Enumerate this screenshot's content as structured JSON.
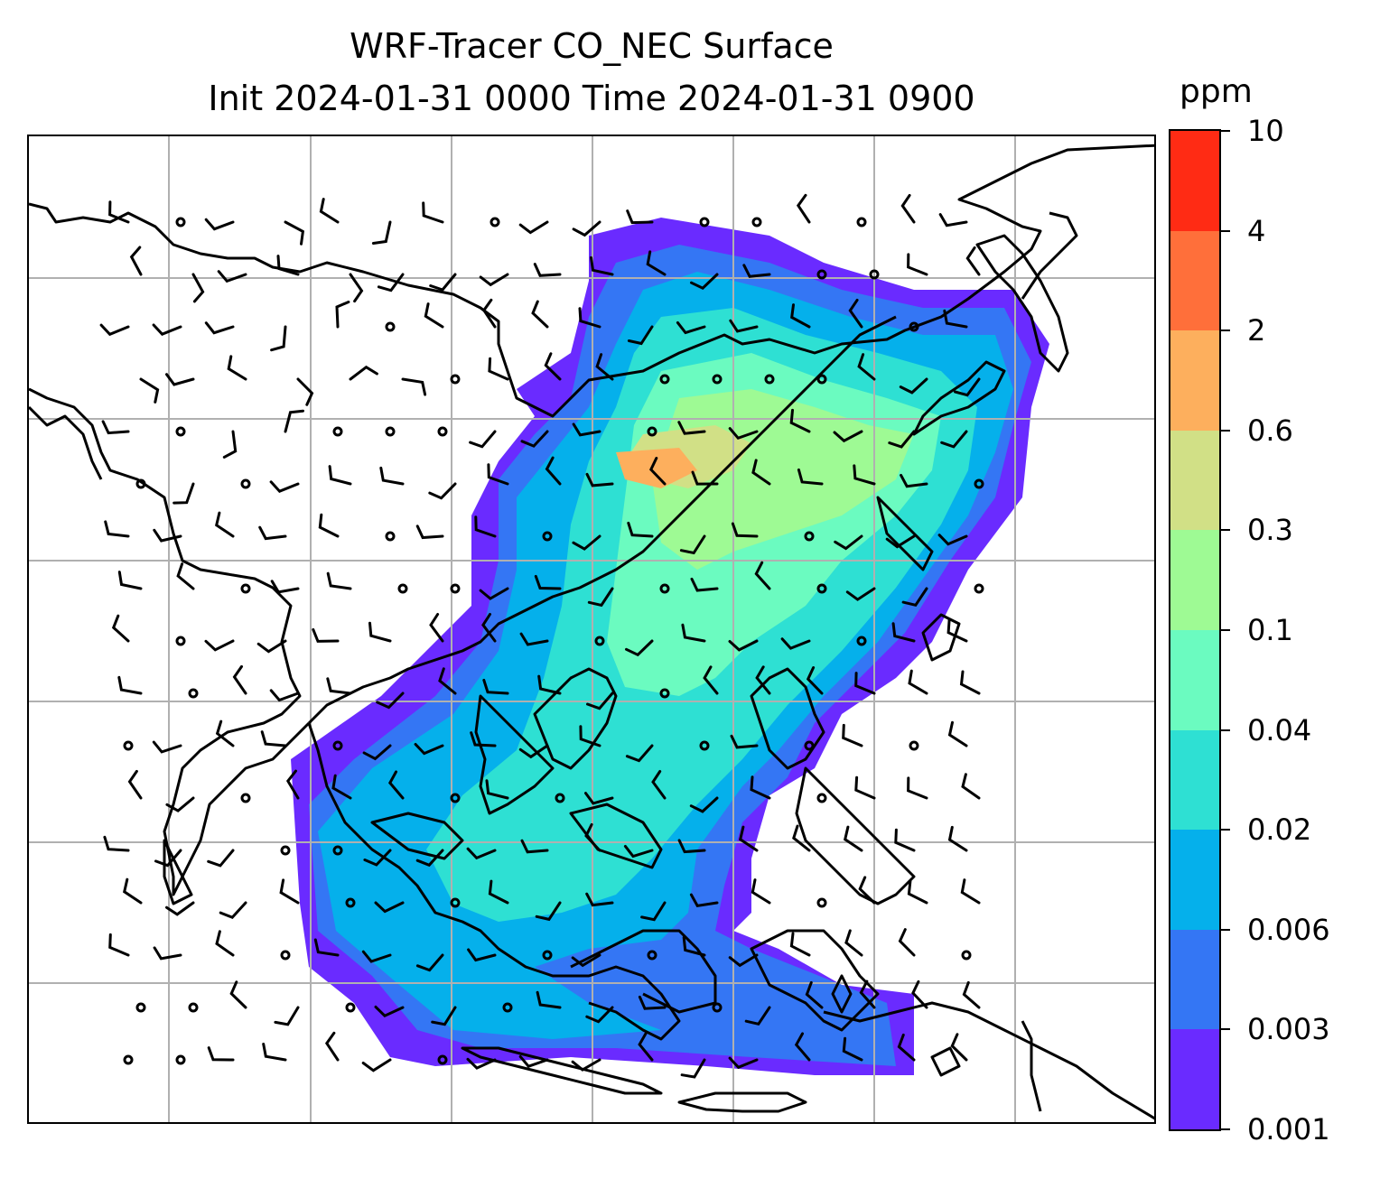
{
  "title": {
    "line1": "WRF-Tracer CO_NEC Surface",
    "line2": "Init 2024-01-31 0000 Time 2024-01-31 0900"
  },
  "colorbar": {
    "unit": "ppm",
    "levels": [
      "0.001",
      "0.003",
      "0.006",
      "0.02",
      "0.04",
      "0.1",
      "0.3",
      "0.6",
      "2",
      "4",
      "10"
    ],
    "colors": [
      "#6a2bff",
      "#3476f4",
      "#05b0eb",
      "#2ee0d3",
      "#6bfbc0",
      "#9efa94",
      "#d1e086",
      "#fdaf5d",
      "#ff6f3a",
      "#ff2b14"
    ]
  },
  "map": {
    "background": "#ffffff",
    "gridline_color": "#b0b0b0",
    "coastline_color": "#000000",
    "wind_barb_color": "#000000"
  }
}
